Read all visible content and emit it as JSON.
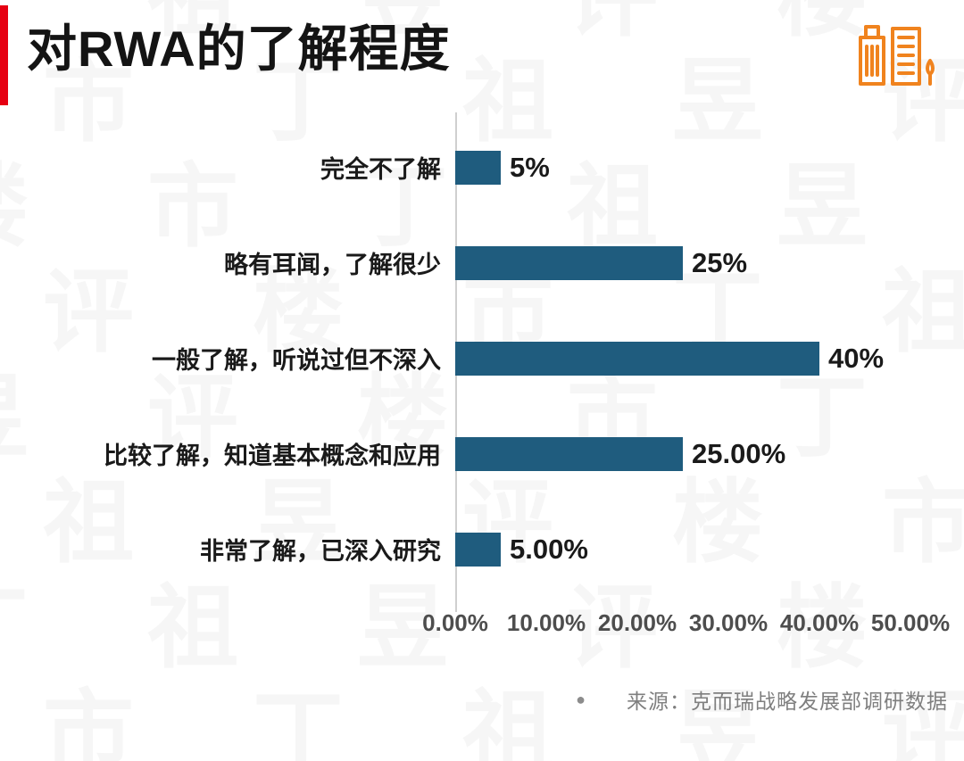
{
  "header": {
    "title": "对RWA的了解程度",
    "accent_color": "#e60012",
    "icon_color": "#f0831e"
  },
  "chart_data": {
    "type": "bar",
    "orientation": "horizontal",
    "title": "对RWA的了解程度",
    "categories": [
      "完全不了解",
      "略有耳闻，了解很少",
      "一般了解，听说过但不深入",
      "比较了解，知道基本概念和应用",
      "非常了解，已深入研究"
    ],
    "values": [
      5,
      25,
      40,
      25,
      5
    ],
    "value_labels": [
      "5%",
      "25%",
      "40%",
      "25.00%",
      "5.00%"
    ],
    "x_ticks": [
      "0.00%",
      "10.00%",
      "20.00%",
      "30.00%",
      "40.00%",
      "50.00%"
    ],
    "xlim": [
      0,
      50
    ],
    "bar_color": "#1f5c7e",
    "grid": false,
    "legend": "none"
  },
  "footer": {
    "bullet": "●",
    "source": "来源：克而瑞战略发展部调研数据"
  },
  "watermark": {
    "text": "丁祖昱评楼市"
  }
}
